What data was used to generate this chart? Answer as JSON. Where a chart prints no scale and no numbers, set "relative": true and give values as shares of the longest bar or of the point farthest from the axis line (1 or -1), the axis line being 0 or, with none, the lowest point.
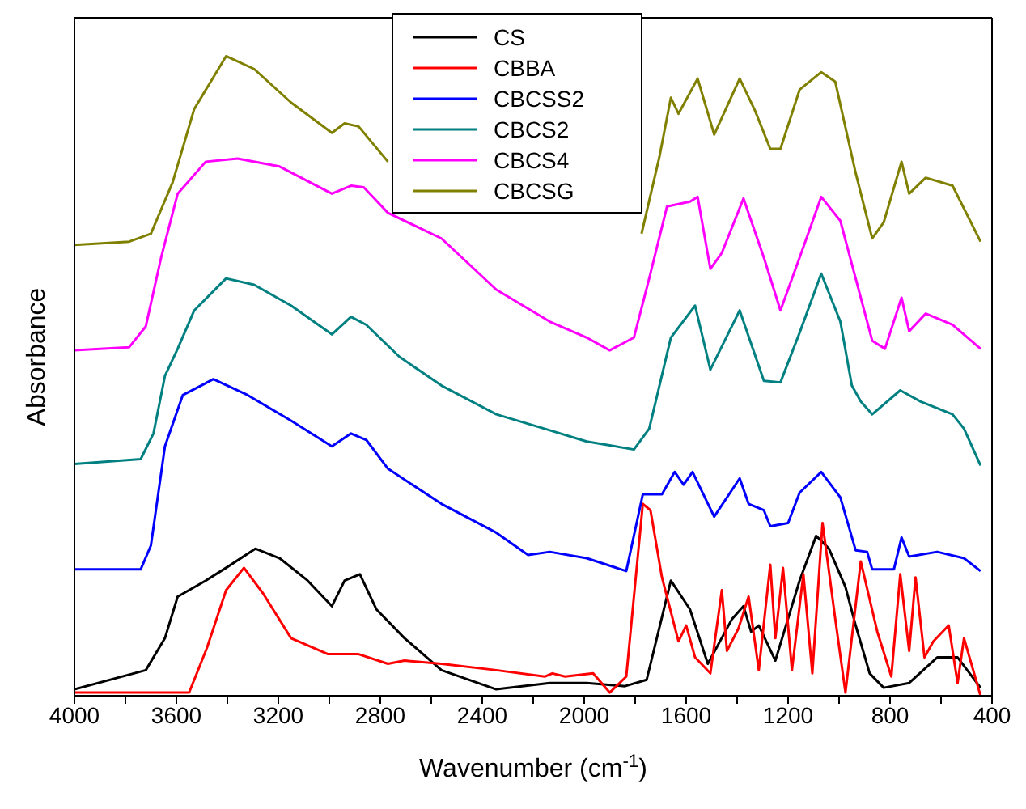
{
  "chart_data": {
    "type": "line",
    "xlabel": "Wavenumber (cm$^{-1}$)",
    "ylabel": "Absorbance",
    "relative": true,
    "legend": "top",
    "marker": "none",
    "line_style": "solid",
    "xlim": [
      4000,
      400
    ],
    "xticks": [
      4000,
      {
        "value": 3800,
        "label": null
      },
      3600,
      {
        "value": 3400,
        "label": null
      },
      3200,
      {
        "value": 3000,
        "label": null
      },
      2800,
      {
        "value": 2600,
        "label": null
      },
      2400,
      {
        "value": 2200,
        "label": null
      },
      2000,
      {
        "value": 1800,
        "label": null
      },
      1600,
      {
        "value": 1400,
        "label": null
      },
      1200,
      {
        "value": 1000,
        "label": null
      },
      800,
      {
        "value": 600,
        "label": null
      },
      400
    ],
    "series": [
      {
        "name": "CS",
        "color": "#000000",
        "x": [
          4000,
          3720,
          3645,
          3595,
          3485,
          3405,
          3290,
          3195,
          3085,
          2990,
          2940,
          2880,
          2815,
          2705,
          2560,
          2345,
          2135,
          1990,
          1840,
          1755,
          1660,
          1585,
          1515,
          1420,
          1375,
          1345,
          1315,
          1250,
          1155,
          1090,
          1040,
          975,
          935,
          880,
          825,
          725,
          615,
          535,
          445
        ],
        "values": [
          0.01,
          0.04,
          0.09,
          0.155,
          0.18,
          0.2,
          0.23,
          0.215,
          0.18,
          0.14,
          0.18,
          0.19,
          0.135,
          0.09,
          0.04,
          0.01,
          0.02,
          0.02,
          0.015,
          0.025,
          0.18,
          0.135,
          0.05,
          0.12,
          0.14,
          0.1,
          0.11,
          0.055,
          0.18,
          0.25,
          0.23,
          0.17,
          0.11,
          0.035,
          0.0125,
          0.02,
          0.06,
          0.06,
          0.0125
        ]
      },
      {
        "name": "CBBA",
        "color": "#ff0000",
        "x": [
          4000,
          3550,
          3480,
          3405,
          3335,
          3260,
          3150,
          3005,
          2885,
          2770,
          2705,
          2560,
          2345,
          2155,
          2125,
          2075,
          1965,
          1900,
          1835,
          1770,
          1740,
          1695,
          1630,
          1600,
          1565,
          1505,
          1460,
          1440,
          1395,
          1355,
          1315,
          1270,
          1250,
          1220,
          1185,
          1140,
          1105,
          1065,
          1015,
          975,
          915,
          850,
          795,
          760,
          725,
          700,
          665,
          630,
          570,
          535,
          510,
          445
        ],
        "values": [
          0.005,
          0.005,
          0.075,
          0.165,
          0.2,
          0.16,
          0.09,
          0.065,
          0.065,
          0.05,
          0.055,
          0.05,
          0.04,
          0.03,
          0.035,
          0.03,
          0.035,
          0.005,
          0.03,
          0.3,
          0.29,
          0.185,
          0.085,
          0.11,
          0.06,
          0.035,
          0.165,
          0.07,
          0.105,
          0.155,
          0.04,
          0.205,
          0.09,
          0.2,
          0.04,
          0.19,
          0.035,
          0.27,
          0.12,
          0.005,
          0.21,
          0.1,
          0.03,
          0.19,
          0.07,
          0.185,
          0.06,
          0.085,
          0.11,
          0.02,
          0.09,
          0
        ]
      },
      {
        "name": "CBCSS2",
        "color": "#0000ff",
        "x": [
          4000,
          3740,
          3700,
          3645,
          3575,
          3455,
          3320,
          3150,
          2990,
          2915,
          2855,
          2770,
          2560,
          2345,
          2220,
          2135,
          1990,
          1835,
          1770,
          1695,
          1645,
          1610,
          1575,
          1490,
          1390,
          1355,
          1295,
          1270,
          1200,
          1155,
          1070,
          995,
          935,
          890,
          870,
          785,
          755,
          725,
          615,
          510,
          445
        ],
        "values": [
          0.1975,
          0.1975,
          0.235,
          0.39,
          0.47,
          0.495,
          0.47,
          0.43,
          0.39,
          0.41,
          0.4,
          0.355,
          0.3,
          0.255,
          0.22,
          0.225,
          0.215,
          0.195,
          0.315,
          0.315,
          0.35,
          0.33,
          0.35,
          0.28,
          0.34,
          0.3,
          0.29,
          0.265,
          0.27,
          0.3175,
          0.35,
          0.31,
          0.2275,
          0.225,
          0.1975,
          0.1975,
          0.2475,
          0.2175,
          0.225,
          0.215,
          0.195
        ]
      },
      {
        "name": "CBCS2",
        "color": "#008080",
        "x": [
          4000,
          3740,
          3690,
          3645,
          3595,
          3530,
          3405,
          3295,
          3150,
          2990,
          2915,
          2855,
          2725,
          2560,
          2345,
          2135,
          1990,
          1805,
          1745,
          1660,
          1565,
          1505,
          1390,
          1295,
          1230,
          1155,
          1070,
          995,
          950,
          915,
          870,
          760,
          680,
          555,
          510,
          445
        ],
        "values": [
          0.3625,
          0.37,
          0.41,
          0.5,
          0.5425,
          0.6025,
          0.6525,
          0.6425,
          0.61,
          0.565,
          0.5925,
          0.58,
          0.53,
          0.485,
          0.44,
          0.415,
          0.3975,
          0.385,
          0.4175,
          0.56,
          0.61,
          0.51,
          0.6025,
          0.4925,
          0.49,
          0.5675,
          0.66,
          0.585,
          0.485,
          0.46,
          0.44,
          0.4775,
          0.46,
          0.44,
          0.4175,
          0.36
        ]
      },
      {
        "name": "CBCS4",
        "color": "#ff00ff",
        "x": [
          4000,
          3785,
          3720,
          3660,
          3595,
          3485,
          3360,
          3195,
          2990,
          2915,
          2865,
          2770,
          2560,
          2345,
          2135,
          1990,
          1900,
          1805,
          1745,
          1675,
          1585,
          1555,
          1505,
          1460,
          1375,
          1295,
          1230,
          1155,
          1070,
          995,
          935,
          870,
          820,
          755,
          725,
          660,
          555,
          445
        ],
        "values": [
          0.54,
          0.545,
          0.5775,
          0.685,
          0.785,
          0.835,
          0.84,
          0.8275,
          0.785,
          0.7975,
          0.795,
          0.755,
          0.715,
          0.635,
          0.585,
          0.56,
          0.54,
          0.56,
          0.6525,
          0.765,
          0.7725,
          0.78,
          0.6675,
          0.6925,
          0.7775,
          0.685,
          0.6025,
          0.685,
          0.78,
          0.7425,
          0.6525,
          0.555,
          0.5425,
          0.6225,
          0.57,
          0.5975,
          0.58,
          0.5425
        ]
      },
      {
        "name": "CBCSG",
        "color": "#808000",
        "x": [
          4000,
          3785,
          3700,
          3615,
          3530,
          3405,
          3295,
          3150,
          2990,
          2940,
          2885,
          2770,
          2300,
          1775,
          1705,
          1660,
          1630,
          1555,
          1490,
          1390,
          1330,
          1270,
          1230,
          1155,
          1070,
          1015,
          935,
          870,
          825,
          755,
          725,
          660,
          555,
          445
        ],
        "values": [
          0.705,
          0.71,
          0.7225,
          0.8025,
          0.9175,
          1,
          0.98,
          0.9275,
          0.88,
          0.895,
          0.89,
          0.835,
          null,
          0.7225,
          0.8425,
          0.935,
          0.91,
          0.965,
          0.8775,
          0.965,
          0.915,
          0.855,
          0.855,
          0.9475,
          0.975,
          0.96,
          0.8175,
          0.715,
          0.74,
          0.835,
          0.785,
          0.81,
          0.7975,
          0.71
        ]
      }
    ]
  }
}
